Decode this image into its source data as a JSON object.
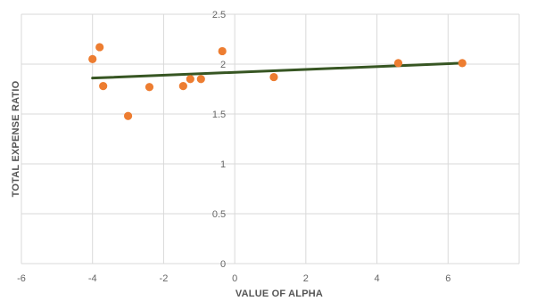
{
  "chart_data": {
    "type": "scatter",
    "xlabel": "VALUE OF ALPHA",
    "ylabel": "TOTAL EXPENSE RATIO",
    "xlim": [
      -6,
      8
    ],
    "ylim": [
      0,
      2.5
    ],
    "x_ticks": [
      -6,
      -4,
      -2,
      0,
      2,
      4,
      6
    ],
    "y_ticks": [
      0,
      0.5,
      1,
      1.5,
      2,
      2.5
    ],
    "x_tick_labels": [
      "-6",
      "-4",
      "-2",
      "0",
      "2",
      "4",
      "6"
    ],
    "y_tick_labels": [
      "0",
      "0.5",
      "1",
      "1.5",
      "2",
      "2.5"
    ],
    "grid": "vertical and horizontal",
    "legend": "none",
    "series": [
      {
        "points": [
          {
            "x": -4.0,
            "y": 2.05
          },
          {
            "x": -3.8,
            "y": 2.17
          },
          {
            "x": -3.7,
            "y": 1.78
          },
          {
            "x": -3.0,
            "y": 1.48
          },
          {
            "x": -2.4,
            "y": 1.77
          },
          {
            "x": -1.45,
            "y": 1.78
          },
          {
            "x": -1.25,
            "y": 1.85
          },
          {
            "x": -0.95,
            "y": 1.85
          },
          {
            "x": -0.35,
            "y": 2.13
          },
          {
            "x": 1.1,
            "y": 1.87
          },
          {
            "x": 4.6,
            "y": 2.01
          },
          {
            "x": 6.4,
            "y": 2.01
          }
        ]
      }
    ],
    "trendline": {
      "x_start": -4.0,
      "y_start": 1.86,
      "x_end": 6.4,
      "y_end": 2.01
    },
    "colors": {
      "marker": "#ED7D31",
      "trendline": "#375623",
      "grid": "#D9D9D9",
      "tick_text": "#666666",
      "axis_title": "#555555"
    }
  }
}
